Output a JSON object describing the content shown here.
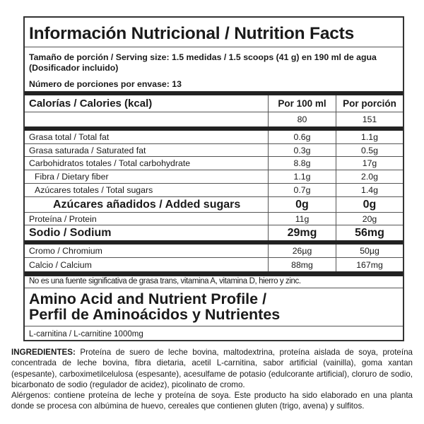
{
  "title": "Información Nutricional / Nutrition Facts",
  "serving_size": "Tamaño de porción / Serving size: 1.5 medidas / 1.5 scoops (41 g) en 190 ml de agua (Dosificador incluido)",
  "servings_per_container": "Número de porciones por envase: 13",
  "calories": {
    "label": "Calorías / Calories (kcal)",
    "col1_header": "Por 100 ml",
    "col2_header": "Por porción",
    "per100": "80",
    "perServing": "151"
  },
  "nutrients": [
    {
      "label": "Grasa total / Total fat",
      "per100": "0.6g",
      "perServing": "1.1g"
    },
    {
      "label": "Grasa saturada / Saturated fat",
      "per100": "0.3g",
      "perServing": "0.5g"
    },
    {
      "label": "Carbohidratos totales / Total carbohydrate",
      "per100": "8.8g",
      "perServing": "17g"
    },
    {
      "label": "Fibra / Dietary fiber",
      "per100": "1.1g",
      "perServing": "2.0g"
    },
    {
      "label": "Azúcares totales / Total sugars",
      "per100": "0.7g",
      "perServing": "1.4g"
    },
    {
      "label": "Azúcares añadidos / Added sugars",
      "per100": "0g",
      "perServing": "0g"
    },
    {
      "label": "Proteína / Protein",
      "per100": "11g",
      "perServing": "20g"
    },
    {
      "label": "Sodio / Sodium",
      "per100": "29mg",
      "perServing": "56mg"
    }
  ],
  "minerals": [
    {
      "label": "Cromo / Chromium",
      "per100": "26µg",
      "perServing": "50µg"
    },
    {
      "label": "Calcio / Calcium",
      "per100": "88mg",
      "perServing": "167mg"
    }
  ],
  "note": "No es una fuente significativa de grasa trans, vitamina  A, vitamina  D, hierro y zinc.",
  "amino_title_1": "Amino Acid and Nutrient Profile /",
  "amino_title_2": "Perfil de Aminoácidos y Nutrientes",
  "carnitine": "L-carnitina / L-carnitine 1000mg",
  "ingredients_label": "INGREDIENTES:",
  "ingredients": " Proteína de suero de leche bovina, maltodextrina, proteína aislada de soya, proteína concentrada de leche bovina, fibra dietaria, acetil L-carnitina, sabor artificial (vainilla), goma xantan (espesante), carboximetilcelulosa (espesante), acesulfame de potasio (edulcorante artificial), cloruro de sodio, bicarbonato de sodio (regulador de acidez), picolinato de cromo.",
  "allergens": "Alérgenos: contiene proteína de leche y proteína de soya. Este producto ha sido elaborado en una planta donde se procesa con albúmina de huevo, cereales que contienen gluten (trigo, avena) y sulfitos."
}
